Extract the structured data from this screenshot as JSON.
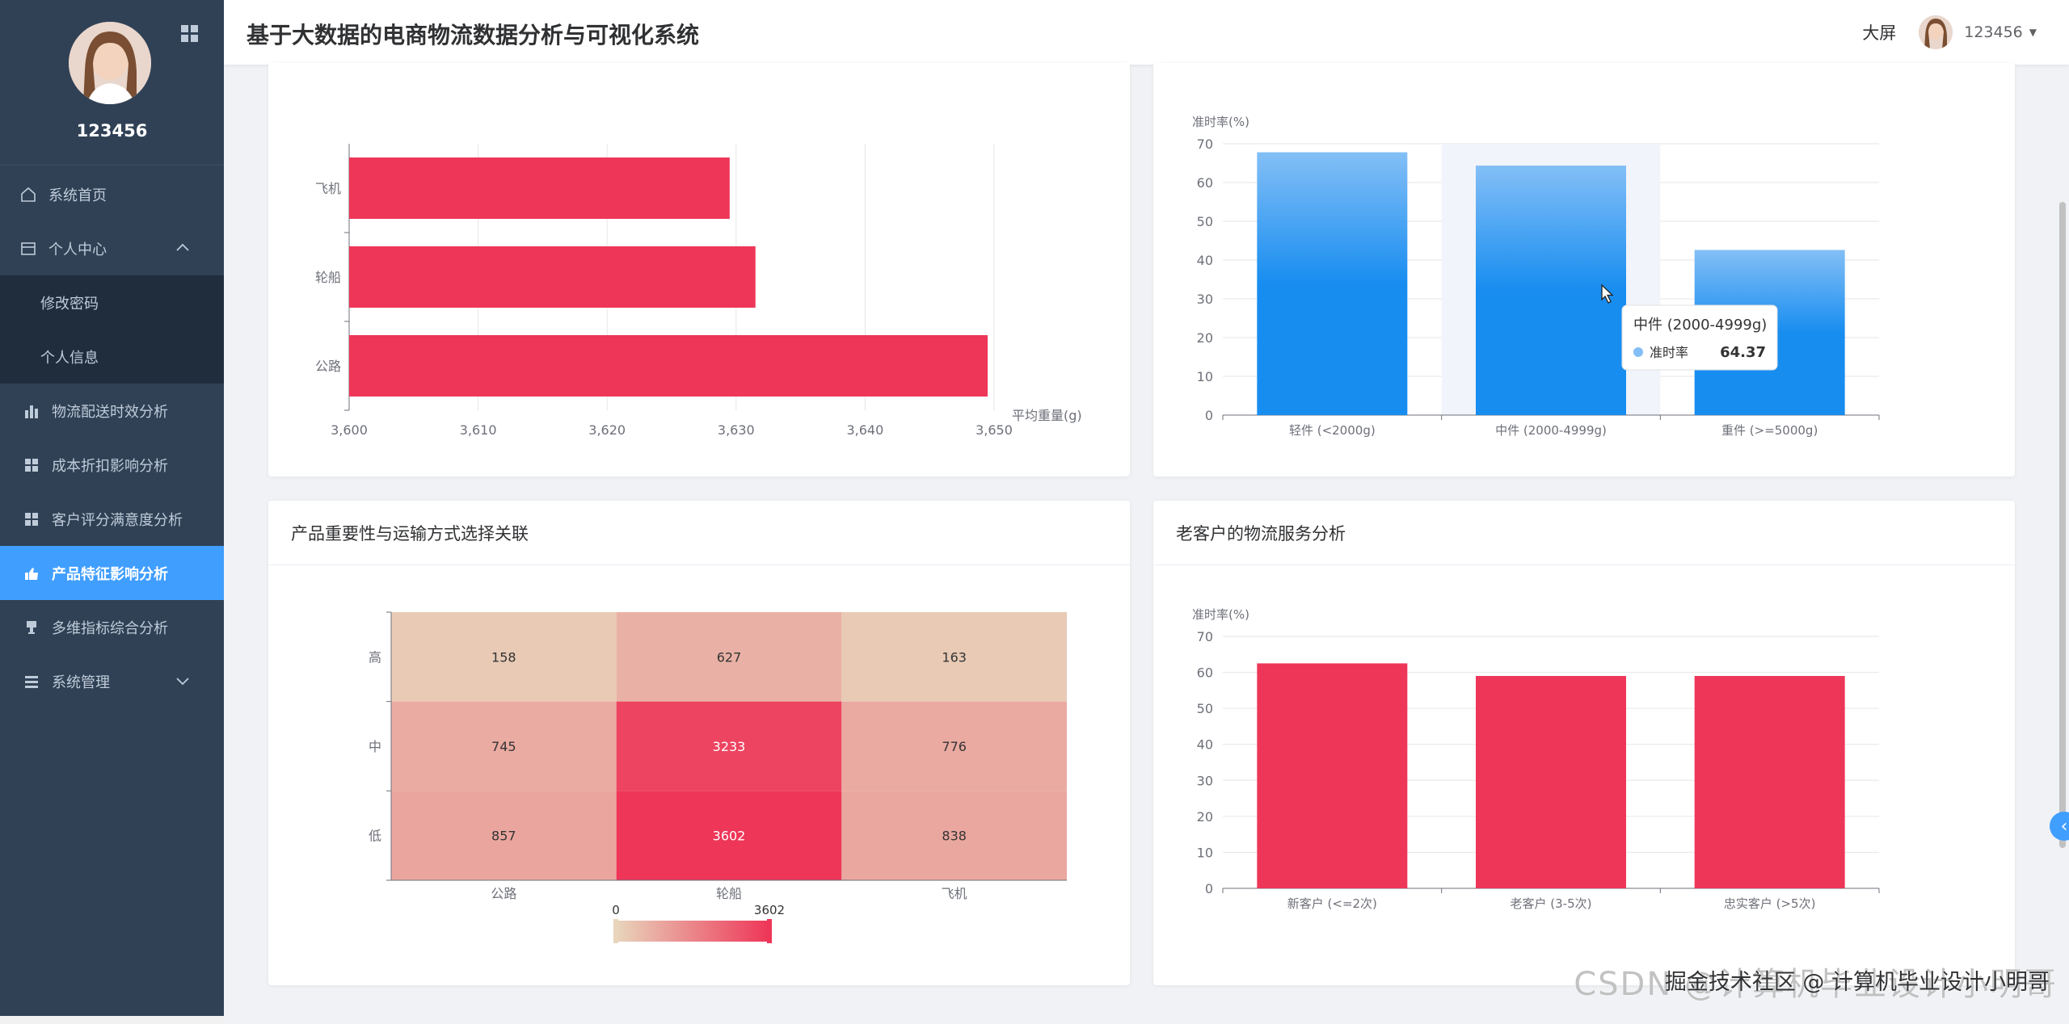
{
  "sidebar": {
    "username": "123456",
    "items": [
      {
        "label": "系统首页",
        "icon": "home-icon"
      },
      {
        "label": "个人中心",
        "icon": "wallet-icon",
        "expanded": true
      },
      {
        "label": "修改密码",
        "sub": true
      },
      {
        "label": "个人信息",
        "sub": true
      },
      {
        "label": "物流配送时效分析",
        "icon": "bar-chart-icon"
      },
      {
        "label": "成本折扣影响分析",
        "icon": "grid-icon"
      },
      {
        "label": "客户评分满意度分析",
        "icon": "grid-icon"
      },
      {
        "label": "产品特征影响分析",
        "icon": "thumb-up-icon",
        "active": true
      },
      {
        "label": "多维指标综合分析",
        "icon": "goblet-icon"
      },
      {
        "label": "系统管理",
        "icon": "list-icon"
      }
    ]
  },
  "header": {
    "title": "基于大数据的电商物流数据分析与可视化系统",
    "screen_link": "大屏",
    "username": "123456"
  },
  "cards": {
    "heatmap_title": "产品重要性与运输方式选择关联",
    "loyal_title": "老客户的物流服务分析"
  },
  "watermark": {
    "text": "掘金技术社区 @ 计算机毕业设计小明哥",
    "ghost": "CSDN @计算机毕业设计小明哥"
  },
  "colors": {
    "accent": "#409eff",
    "bar_red": "#ee3658",
    "bar_blue": "#2f9bf6"
  },
  "chart_data": [
    {
      "type": "bar",
      "orientation": "horizontal",
      "categories": [
        "公路",
        "轮船",
        "飞机"
      ],
      "values": [
        3649.5,
        3631.5,
        3629.5
      ],
      "xlabel": "平均重量(g)",
      "xlim": [
        3600,
        3650
      ],
      "xticks": [
        "3,600",
        "3,610",
        "3,620",
        "3,630",
        "3,640",
        "3,650"
      ]
    },
    {
      "type": "bar",
      "categories": [
        "轻件 (<2000g)",
        "中件 (2000-4999g)",
        "重件 (>=5000g)"
      ],
      "values": [
        67.8,
        64.37,
        42.6
      ],
      "ylabel": "准时率(%)",
      "ylim": [
        0,
        70
      ],
      "yticks": [
        0,
        10,
        20,
        30,
        40,
        50,
        60,
        70
      ],
      "tooltip": {
        "title": "中件 (2000-4999g)",
        "series": "准时率",
        "value": "64.37"
      }
    },
    {
      "type": "heatmap",
      "x": [
        "公路",
        "轮船",
        "飞机"
      ],
      "y": [
        "高",
        "中",
        "低"
      ],
      "values": [
        [
          158,
          627,
          163
        ],
        [
          745,
          3233,
          776
        ],
        [
          857,
          3602,
          838
        ]
      ],
      "visual_map": {
        "min": "0",
        "max": "3602"
      }
    },
    {
      "type": "bar",
      "categories": [
        "新客户 (<=2次)",
        "老客户 (3-5次)",
        "忠实客户 (>5次)"
      ],
      "values": [
        62.5,
        59,
        59
      ],
      "ylabel": "准时率(%)",
      "ylim": [
        0,
        70
      ],
      "yticks": [
        0,
        10,
        20,
        30,
        40,
        50,
        60,
        70
      ]
    }
  ]
}
